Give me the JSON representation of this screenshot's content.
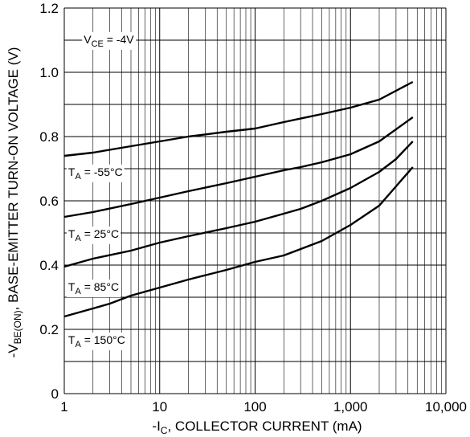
{
  "chart_data": {
    "type": "line",
    "x_scale": "log",
    "xlim": [
      1,
      10000
    ],
    "ylim": [
      0,
      1.2
    ],
    "grid": true,
    "xlabel_prefix": "-I",
    "xlabel_sub": "C",
    "xlabel_suffix": ", COLLECTOR CURRENT (mA)",
    "ylabel_prefix": "-V",
    "ylabel_sub": "BE(ON)",
    "ylabel_suffix": ", BASE-EMITTER TURN-ON VOLTAGE (V)",
    "x_ticks": [
      {
        "value": 1,
        "label": "1"
      },
      {
        "value": 10,
        "label": "10"
      },
      {
        "value": 100,
        "label": "100"
      },
      {
        "value": 1000,
        "label": "1,000"
      },
      {
        "value": 10000,
        "label": "10,000"
      }
    ],
    "y_ticks": [
      {
        "value": 0,
        "label": "0"
      },
      {
        "value": 0.2,
        "label": "0.2"
      },
      {
        "value": 0.4,
        "label": "0.4"
      },
      {
        "value": 0.6,
        "label": "0.6"
      },
      {
        "value": 0.8,
        "label": "0.8"
      },
      {
        "value": 1.0,
        "label": "1.0"
      },
      {
        "value": 1.2,
        "label": "1.2"
      }
    ],
    "condition": {
      "prefix": "V",
      "sub": "CE",
      "suffix": " = -4V",
      "x": 1.6,
      "y": 1.09
    },
    "series": [
      {
        "name_prefix": "T",
        "name_sub": "A",
        "name_suffix": " = -55°C",
        "label_at": {
          "x": 1.1,
          "y": 0.678
        },
        "x": [
          1,
          2,
          5,
          10,
          20,
          50,
          100,
          200,
          500,
          1000,
          2000,
          4500
        ],
        "y": [
          0.74,
          0.75,
          0.77,
          0.785,
          0.8,
          0.815,
          0.825,
          0.845,
          0.87,
          0.89,
          0.915,
          0.97
        ]
      },
      {
        "name_prefix": "T",
        "name_sub": "A",
        "name_suffix": " = 25°C",
        "label_at": {
          "x": 1.1,
          "y": 0.485
        },
        "x": [
          1,
          2,
          5,
          10,
          20,
          50,
          100,
          200,
          300,
          500,
          1000,
          2000,
          4500
        ],
        "y": [
          0.55,
          0.565,
          0.59,
          0.61,
          0.63,
          0.655,
          0.675,
          0.695,
          0.705,
          0.72,
          0.745,
          0.785,
          0.86
        ]
      },
      {
        "name_prefix": "T",
        "name_sub": "A",
        "name_suffix": " = 85°C",
        "label_at": {
          "x": 1.1,
          "y": 0.32
        },
        "x": [
          1,
          2,
          5,
          10,
          20,
          50,
          100,
          200,
          300,
          500,
          1000,
          2000,
          3000,
          4500
        ],
        "y": [
          0.395,
          0.42,
          0.445,
          0.47,
          0.49,
          0.515,
          0.535,
          0.56,
          0.575,
          0.6,
          0.64,
          0.69,
          0.73,
          0.785
        ]
      },
      {
        "name_prefix": "T",
        "name_sub": "A",
        "name_suffix": " = 150°C",
        "label_at": {
          "x": 1.1,
          "y": 0.155
        },
        "x": [
          1,
          2,
          3,
          5,
          10,
          20,
          50,
          100,
          200,
          500,
          1000,
          2000,
          3000,
          4500
        ],
        "y": [
          0.24,
          0.265,
          0.28,
          0.305,
          0.33,
          0.355,
          0.385,
          0.41,
          0.43,
          0.475,
          0.525,
          0.585,
          0.645,
          0.705
        ]
      }
    ]
  }
}
